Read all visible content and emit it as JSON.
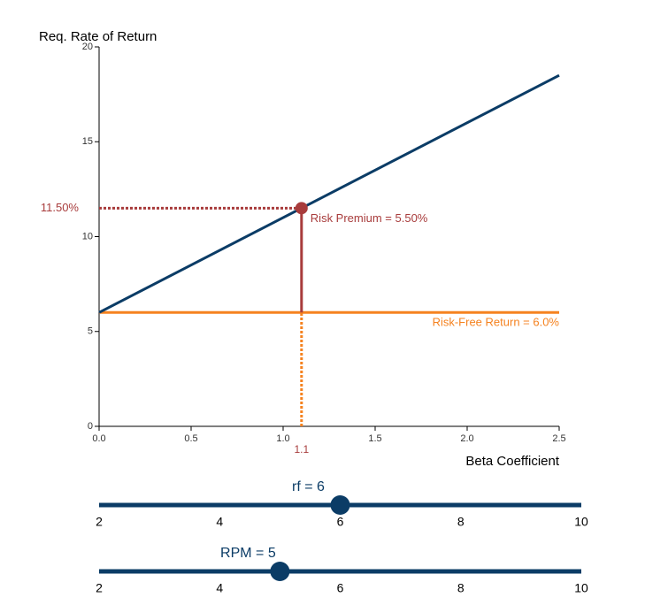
{
  "chart_data": {
    "type": "line",
    "y_label": "Req. Rate of Return",
    "x_label": "Beta Coefficient",
    "xlim": [
      0,
      2.5
    ],
    "xticks": [
      {
        "value": 0,
        "label": "0.0"
      },
      {
        "value": 0.5,
        "label": "0.5"
      },
      {
        "value": 1,
        "label": "1.0"
      },
      {
        "value": 1.5,
        "label": "1.5"
      },
      {
        "value": 2,
        "label": "2.0"
      },
      {
        "value": 2.5,
        "label": "2.5"
      }
    ],
    "ylim": [
      0,
      20
    ],
    "yticks": [
      0,
      5,
      10,
      15,
      20
    ],
    "series": [
      {
        "color": "#0b3c66",
        "x": [
          0,
          2.5
        ],
        "values": [
          6,
          18.5
        ]
      },
      {
        "color": "#f5821f",
        "x": [
          0,
          2.5
        ],
        "values": [
          6,
          6
        ]
      }
    ],
    "point": {
      "x": 1.1,
      "x_label": "1.1",
      "y": 11.5,
      "y_label": "11.50%",
      "color": "#a83c3c"
    },
    "annotations": [
      "Risk Premium = 5.50%",
      "Risk-Free Return = 6.0%"
    ]
  },
  "sliders": [
    {
      "label": "rf = 6",
      "value": 6,
      "range": [
        2,
        10
      ],
      "ticks": [
        2,
        4,
        6,
        8,
        10
      ]
    },
    {
      "label": "RPM = 5",
      "value": 5,
      "range": [
        2,
        10
      ],
      "ticks": [
        2,
        4,
        6,
        8,
        10
      ]
    }
  ]
}
